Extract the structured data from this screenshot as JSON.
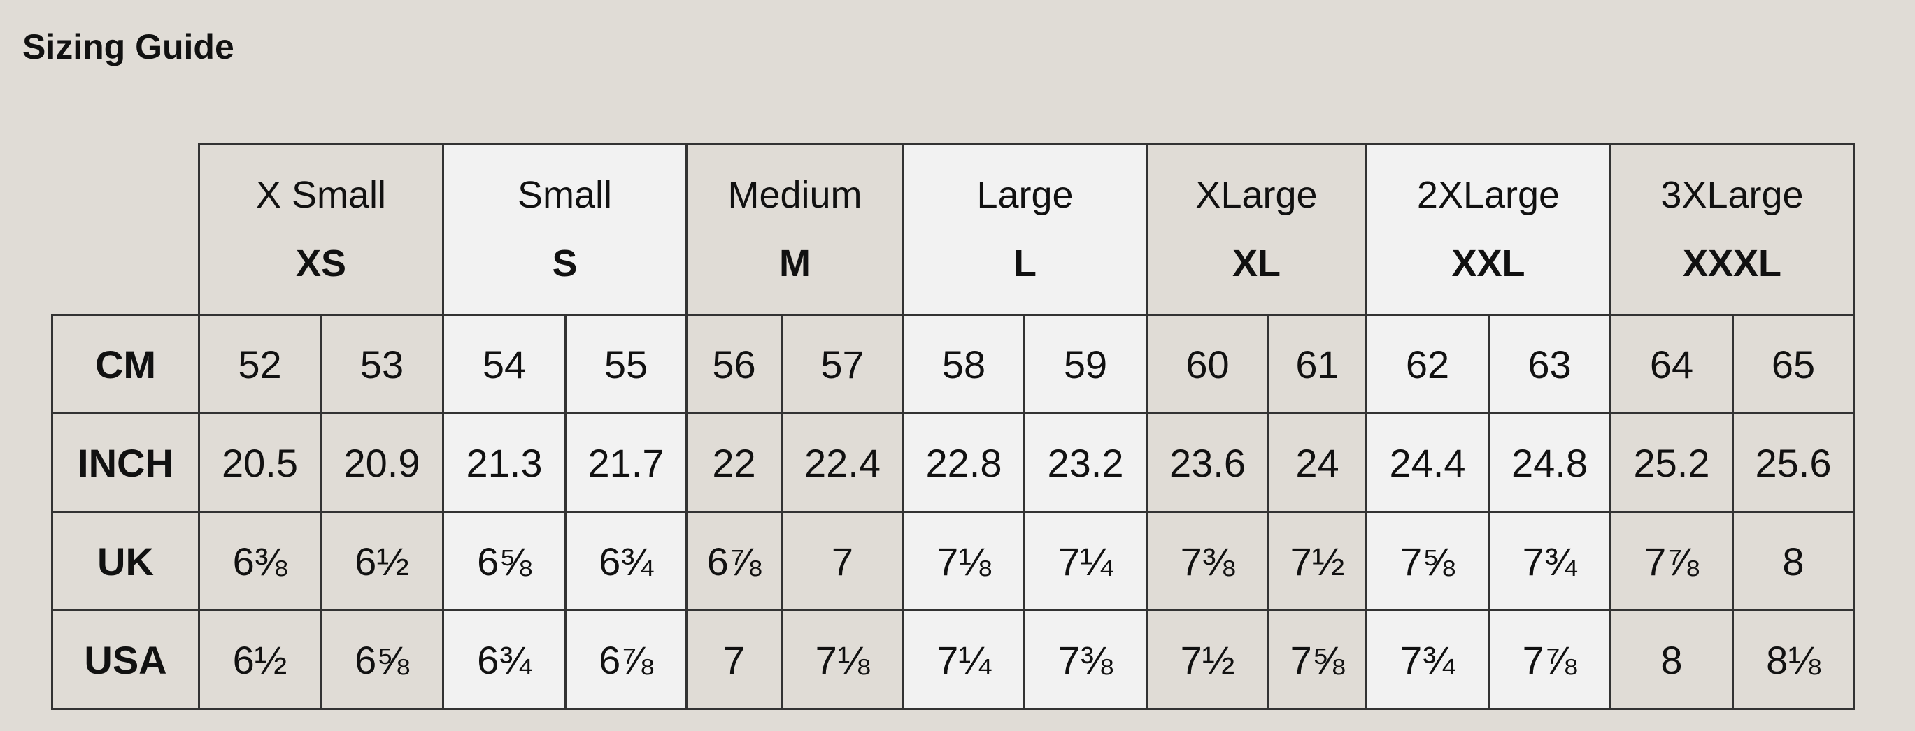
{
  "title": "Sizing Guide",
  "sizes": [
    {
      "name": "X Small",
      "code": "XS"
    },
    {
      "name": "Small",
      "code": "S"
    },
    {
      "name": "Medium",
      "code": "M"
    },
    {
      "name": "Large",
      "code": "L"
    },
    {
      "name": "XLarge",
      "code": "XL"
    },
    {
      "name": "2XLarge",
      "code": "XXL"
    },
    {
      "name": "3XLarge",
      "code": "XXXL"
    }
  ],
  "rows": [
    {
      "label": "CM",
      "values": [
        "52",
        "53",
        "54",
        "55",
        "56",
        "57",
        "58",
        "59",
        "60",
        "61",
        "62",
        "63",
        "64",
        "65"
      ]
    },
    {
      "label": "INCH",
      "values": [
        "20.5",
        "20.9",
        "21.3",
        "21.7",
        "22",
        "22.4",
        "22.8",
        "23.2",
        "23.6",
        "24",
        "24.4",
        "24.8",
        "25.2",
        "25.6"
      ]
    },
    {
      "label": "UK",
      "values": [
        "6⅜",
        "6½",
        "6⅝",
        "6¾",
        "6⅞",
        "7",
        "7⅛",
        "7¼",
        "7⅜",
        "7½",
        "7⅝",
        "7¾",
        "7⅞",
        "8"
      ]
    },
    {
      "label": "USA",
      "values": [
        "6½",
        "6⅝",
        "6¾",
        "6⅞",
        "7",
        "7⅛",
        "7¼",
        "7⅜",
        "7½",
        "7⅝",
        "7¾",
        "7⅞",
        "8",
        "8⅛"
      ]
    }
  ],
  "colors": {
    "background": "#e0dcd6",
    "alt_column": "#f2f2f2",
    "border": "#333333"
  }
}
